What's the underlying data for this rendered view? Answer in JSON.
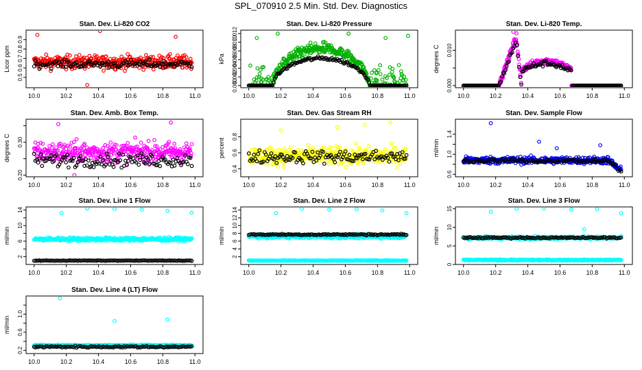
{
  "figure_title": "SPL_070910  2.5 Min. Std. Dev. Diagnostics",
  "colors": {
    "red": "#ff0000",
    "green": "#00b000",
    "magenta": "#ff00ff",
    "yellow": "#ffff00",
    "blue": "#0000ff",
    "cyan": "#00ffff",
    "black": "#000000"
  },
  "chart_data": [
    {
      "type": "scatter",
      "title": "Stan. Dev. Li-820 CO2",
      "xlabel": "",
      "ylabel": "Licor ppm",
      "xlim": [
        9.95,
        11.05
      ],
      "ylim": [
        0.39,
        1.0
      ],
      "xticks": [
        10.0,
        10.2,
        10.4,
        10.6,
        10.8,
        11.0
      ],
      "xtick_labels": [
        "10.0",
        "10.2",
        "10.4",
        "10.6",
        "10.8",
        "11.0"
      ],
      "yticks": [
        0.5,
        0.6,
        0.7,
        0.8,
        0.9
      ],
      "ytick_labels": [
        "0.5",
        "0.6",
        "0.7",
        "0.8",
        "0.9"
      ],
      "grid": false,
      "point_color": "#ff0000",
      "series": [
        {
          "pattern": "noise",
          "center": 0.66,
          "spread": 0.07,
          "outliers": [
            [
              10.02,
              0.95
            ],
            [
              10.41,
              0.99
            ],
            [
              10.33,
              0.42
            ],
            [
              10.88,
              0.93
            ]
          ]
        },
        {
          "pattern": "noise_black",
          "center": 0.64,
          "spread": 0.04
        }
      ]
    },
    {
      "type": "scatter",
      "title": "Stan. Dev. Li-820 Pressure",
      "xlabel": "",
      "ylabel": "kPa",
      "xlim": [
        9.95,
        11.05
      ],
      "ylim": [
        -0.0005,
        0.0128
      ],
      "xticks": [
        10.0,
        10.2,
        10.4,
        10.6,
        10.8,
        11.0
      ],
      "xtick_labels": [
        "10.0",
        "10.2",
        "10.4",
        "10.6",
        "10.8",
        "11.0"
      ],
      "yticks": [
        0.0,
        0.002,
        0.004,
        0.006,
        0.008,
        0.01,
        0.012
      ],
      "ytick_labels": [
        "0.000",
        "0.002",
        "0.004",
        "0.006",
        "0.008",
        "0.010",
        "0.012"
      ],
      "grid": false,
      "point_color": "#00b000",
      "series": [
        {
          "pattern": "hump",
          "base": 0.0,
          "peak": 0.0085,
          "x1": 10.15,
          "x2": 10.75,
          "spread": 0.0013,
          "outliers": [
            [
              10.05,
              0.011
            ],
            [
              10.18,
              0.012
            ],
            [
              10.62,
              0.012
            ],
            [
              10.85,
              0.011
            ],
            [
              10.99,
              0.0115
            ]
          ]
        },
        {
          "pattern": "hump_black",
          "base": 0.0,
          "peak": 0.0063,
          "x1": 10.15,
          "x2": 10.75,
          "spread": 0.0004
        }
      ]
    },
    {
      "type": "scatter",
      "title": "Stan. Dev. Li-820 Temp.",
      "xlabel": "",
      "ylabel": "degrees C",
      "xlim": [
        9.95,
        11.05
      ],
      "ylim": [
        -0.0006,
        0.0157
      ],
      "xticks": [
        10.0,
        10.2,
        10.4,
        10.6,
        10.8,
        11.0
      ],
      "xtick_labels": [
        "10.0",
        "10.2",
        "10.4",
        "10.6",
        "10.8",
        "11.0"
      ],
      "yticks": [
        0.0,
        0.005,
        0.01
      ],
      "ytick_labels": [
        "0.000",
        "",
        "0.010"
      ],
      "grid": false,
      "point_color": "#ff00ff",
      "series": [
        {
          "pattern": "temp",
          "outliers": [
            [
              10.31,
              0.0152
            ],
            [
              10.33,
              0.0148
            ]
          ]
        },
        {
          "pattern": "temp_black"
        }
      ]
    },
    {
      "type": "scatter",
      "title": "Stan. Dev. Amb. Box Temp.",
      "xlabel": "",
      "ylabel": "degrees C",
      "xlim": [
        9.95,
        11.05
      ],
      "ylim": [
        0.195,
        0.37
      ],
      "xticks": [
        10.0,
        10.2,
        10.4,
        10.6,
        10.8,
        11.0
      ],
      "xtick_labels": [
        "10.0",
        "10.2",
        "10.4",
        "10.6",
        "10.8",
        "11.0"
      ],
      "yticks": [
        0.2,
        0.25,
        0.3,
        0.35
      ],
      "ytick_labels": [
        "0.20",
        "",
        "0.30",
        ""
      ],
      "grid": false,
      "point_color": "#ff00ff",
      "series": [
        {
          "pattern": "noise",
          "center": 0.27,
          "spread": 0.03,
          "outliers": [
            [
              10.15,
              0.355
            ],
            [
              10.85,
              0.36
            ],
            [
              10.25,
              0.2
            ]
          ]
        },
        {
          "pattern": "noise_black",
          "center": 0.245,
          "spread": 0.02
        }
      ]
    },
    {
      "type": "scatter",
      "title": "Stan. Dev. Gas Stream RH",
      "xlabel": "",
      "ylabel": "percent",
      "xlim": [
        9.95,
        11.05
      ],
      "ylim": [
        0.3,
        1.02
      ],
      "xticks": [
        10.0,
        10.2,
        10.4,
        10.6,
        10.8,
        11.0
      ],
      "xtick_labels": [
        "10.0",
        "10.2",
        "10.4",
        "10.6",
        "10.8",
        "11.0"
      ],
      "yticks": [
        0.4,
        0.6,
        0.8
      ],
      "ytick_labels": [
        "0.4",
        "0.6",
        "0.8"
      ],
      "grid": false,
      "point_color": "#ffff00",
      "series": [
        {
          "pattern": "noise",
          "center": 0.56,
          "spread": 0.11,
          "outliers": [
            [
              10.55,
              0.92
            ],
            [
              10.72,
              0.95
            ],
            [
              10.88,
              0.98
            ],
            [
              10.2,
              0.88
            ]
          ]
        },
        {
          "pattern": "noise_black",
          "center": 0.55,
          "spread": 0.08
        }
      ]
    },
    {
      "type": "scatter",
      "title": "Stan. Dev. Sample Flow",
      "xlabel": "",
      "ylabel": "ml/min",
      "xlim": [
        9.95,
        11.05
      ],
      "ylim": [
        0.55,
        1.7
      ],
      "xticks": [
        10.0,
        10.2,
        10.4,
        10.6,
        10.8,
        11.0
      ],
      "xtick_labels": [
        "10.0",
        "10.2",
        "10.4",
        "10.6",
        "10.8",
        "11.0"
      ],
      "yticks": [
        0.6,
        0.8,
        1.0,
        1.2,
        1.4
      ],
      "ytick_labels": [
        "0.6",
        "",
        "1.0",
        "",
        "1.4"
      ],
      "grid": false,
      "point_color": "#0000ff",
      "series": [
        {
          "pattern": "flow",
          "center": 0.88,
          "spread": 0.07,
          "outliers": [
            [
              10.17,
              1.62
            ],
            [
              10.47,
              1.25
            ],
            [
              10.58,
              1.12
            ],
            [
              10.85,
              1.18
            ]
          ]
        },
        {
          "pattern": "flow_black",
          "center": 0.87,
          "spread": 0.04
        }
      ]
    },
    {
      "type": "scatter",
      "title": "Stan. Dev. Line 1 Flow",
      "xlabel": "",
      "ylabel": "ml/min",
      "xlim": [
        9.95,
        11.05
      ],
      "ylim": [
        0,
        14.8
      ],
      "xticks": [
        10.0,
        10.2,
        10.4,
        10.6,
        10.8,
        11.0
      ],
      "xtick_labels": [
        "10.0",
        "10.2",
        "10.4",
        "10.6",
        "10.8",
        "11.0"
      ],
      "yticks": [
        2,
        4,
        6,
        8,
        10,
        12,
        14
      ],
      "ytick_labels": [
        "2",
        "",
        "6",
        "",
        "10",
        "",
        "14"
      ],
      "grid": false,
      "point_color": "#00ffff",
      "series": [
        {
          "pattern": "band",
          "center": 6.5,
          "spread": 0.45,
          "outliers": [
            [
              10.17,
              13.2
            ],
            [
              10.33,
              14.4
            ],
            [
              10.5,
              14.3
            ],
            [
              10.67,
              14.1
            ],
            [
              10.83,
              13.8
            ],
            [
              10.98,
              13.3
            ]
          ]
        },
        {
          "pattern": "band_black",
          "center": 1.0,
          "spread": 0.06
        }
      ]
    },
    {
      "type": "scatter",
      "title": "Stan. Dev. Line 2 Flow",
      "xlabel": "",
      "ylabel": "ml/min",
      "xlim": [
        9.95,
        11.05
      ],
      "ylim": [
        0,
        14.8
      ],
      "xticks": [
        10.0,
        10.2,
        10.4,
        10.6,
        10.8,
        11.0
      ],
      "xtick_labels": [
        "10.0",
        "10.2",
        "10.4",
        "10.6",
        "10.8",
        "11.0"
      ],
      "yticks": [
        2,
        4,
        6,
        8,
        10,
        12,
        14
      ],
      "ytick_labels": [
        "2",
        "4",
        "6",
        "8",
        "10",
        "12",
        "14"
      ],
      "grid": false,
      "point_color": "#00ffff",
      "series": [
        {
          "pattern": "band",
          "center": 7.2,
          "spread": 0.45,
          "outliers": [
            [
              10.17,
              13.2
            ],
            [
              10.33,
              14.3
            ],
            [
              10.5,
              14.1
            ],
            [
              10.67,
              14.2
            ],
            [
              10.83,
              13.9
            ],
            [
              10.98,
              13.2
            ]
          ]
        },
        {
          "pattern": "band",
          "center": 1.0,
          "spread": 0.08
        },
        {
          "pattern": "band_black",
          "center": 7.7,
          "spread": 0.2
        }
      ]
    },
    {
      "type": "scatter",
      "title": "Stan. Dev. Line 3 Flow",
      "xlabel": "",
      "ylabel": "ml/min",
      "xlim": [
        9.95,
        11.05
      ],
      "ylim": [
        0,
        15.5
      ],
      "xticks": [
        10.0,
        10.2,
        10.4,
        10.6,
        10.8,
        11.0
      ],
      "xtick_labels": [
        "10.0",
        "10.2",
        "10.4",
        "10.6",
        "10.8",
        "11.0"
      ],
      "yticks": [
        0,
        5,
        10,
        15
      ],
      "ytick_labels": [
        "0",
        "5",
        "10",
        "15"
      ],
      "grid": false,
      "point_color": "#00ffff",
      "series": [
        {
          "pattern": "band",
          "center": 7.2,
          "spread": 0.35,
          "outliers": [
            [
              10.17,
              14.2
            ],
            [
              10.33,
              15.0
            ],
            [
              10.5,
              15.1
            ],
            [
              10.67,
              14.8
            ],
            [
              10.83,
              14.9
            ],
            [
              10.98,
              13.8
            ],
            [
              10.75,
              9.5
            ]
          ]
        },
        {
          "pattern": "band",
          "center": 1.2,
          "spread": 0.15
        },
        {
          "pattern": "band_black",
          "center": 7.2,
          "spread": 0.2
        }
      ]
    },
    {
      "type": "scatter",
      "title": "Stan. Dev. Line 4 (LT) Flow",
      "xlabel": "",
      "ylabel": "ml/min",
      "xlim": [
        9.95,
        11.05
      ],
      "ylim": [
        0.13,
        1.4
      ],
      "xticks": [
        10.0,
        10.2,
        10.4,
        10.6,
        10.8,
        11.0
      ],
      "xtick_labels": [
        "10.0",
        "10.2",
        "10.4",
        "10.6",
        "10.8",
        "11.0"
      ],
      "yticks": [
        0.2,
        0.4,
        0.6,
        0.8,
        1.0,
        1.2
      ],
      "ytick_labels": [
        "0.2",
        "",
        "0.6",
        "",
        "1.0",
        ""
      ],
      "grid": false,
      "point_color": "#00ffff",
      "series": [
        {
          "pattern": "band",
          "center": 0.31,
          "spread": 0.015,
          "outliers": [
            [
              10.16,
              1.35
            ],
            [
              10.5,
              0.85
            ],
            [
              10.83,
              0.88
            ]
          ]
        },
        {
          "pattern": "band_black",
          "center": 0.28,
          "spread": 0.02
        }
      ]
    }
  ]
}
